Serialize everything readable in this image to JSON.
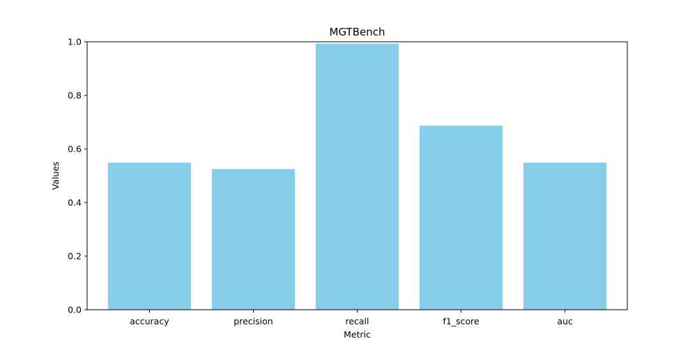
{
  "chart_data": {
    "type": "bar",
    "title": "MGTBench",
    "xlabel": "Metric",
    "ylabel": "Values",
    "categories": [
      "accuracy",
      "precision",
      "recall",
      "f1_score",
      "auc"
    ],
    "values": [
      0.549,
      0.525,
      0.993,
      0.687,
      0.549
    ],
    "ylim": [
      0,
      1.0
    ],
    "yticks": [
      "0.0",
      "0.2",
      "0.4",
      "0.6",
      "0.8",
      "1.0"
    ],
    "grid": false,
    "bar_color": "#87CEEB"
  }
}
